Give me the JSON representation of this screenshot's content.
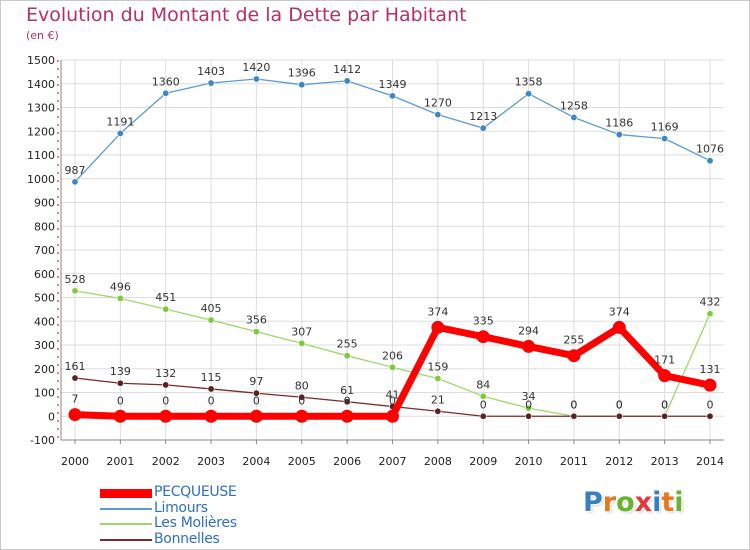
{
  "title": "Evolution du Montant de la Dette par Habitant",
  "unit": "(en €)",
  "logo": {
    "text": "Proxiti",
    "letter_colors": [
      "#3a7ec2",
      "#e8781e",
      "#6bb234",
      "#e03a3e",
      "#3a7ec2",
      "#e8781e",
      "#6bb234"
    ]
  },
  "chart_data": {
    "type": "line",
    "x": [
      2000,
      2001,
      2002,
      2003,
      2004,
      2005,
      2006,
      2007,
      2008,
      2009,
      2010,
      2011,
      2012,
      2013,
      2014
    ],
    "ylim": [
      -100,
      1500
    ],
    "yticks": [
      -100,
      0,
      100,
      200,
      300,
      400,
      500,
      600,
      700,
      800,
      900,
      1000,
      1100,
      1200,
      1300,
      1400,
      1500
    ],
    "grid": true,
    "legend": "bottom-left",
    "series": [
      {
        "name": "Limours",
        "color": "#5b9bd5",
        "marker": "#3f84c4",
        "values": [
          987,
          1191,
          1360,
          1403,
          1420,
          1396,
          1412,
          1349,
          1270,
          1213,
          1358,
          1258,
          1186,
          1169,
          1076
        ]
      },
      {
        "name": "Les Molières",
        "color": "#9ed86a",
        "marker": "#7ccb3d",
        "values": [
          528,
          496,
          451,
          405,
          356,
          307,
          255,
          206,
          159,
          84,
          34,
          0,
          0,
          0,
          432
        ]
      },
      {
        "name": "Bonnelles",
        "color": "#7b2b2b",
        "marker": "#5e1f1f",
        "values": [
          161,
          139,
          132,
          115,
          97,
          80,
          61,
          41,
          21,
          0,
          0,
          0,
          0,
          0,
          0
        ]
      },
      {
        "name": "PECQUEUSE",
        "color": "#ff0000",
        "marker": "#ff0000",
        "values": [
          7,
          0,
          0,
          0,
          0,
          0,
          0,
          0,
          374,
          335,
          294,
          255,
          374,
          171,
          131
        ]
      }
    ],
    "legend_order": [
      "PECQUEUSE",
      "Limours",
      "Les Molières",
      "Bonnelles"
    ]
  }
}
